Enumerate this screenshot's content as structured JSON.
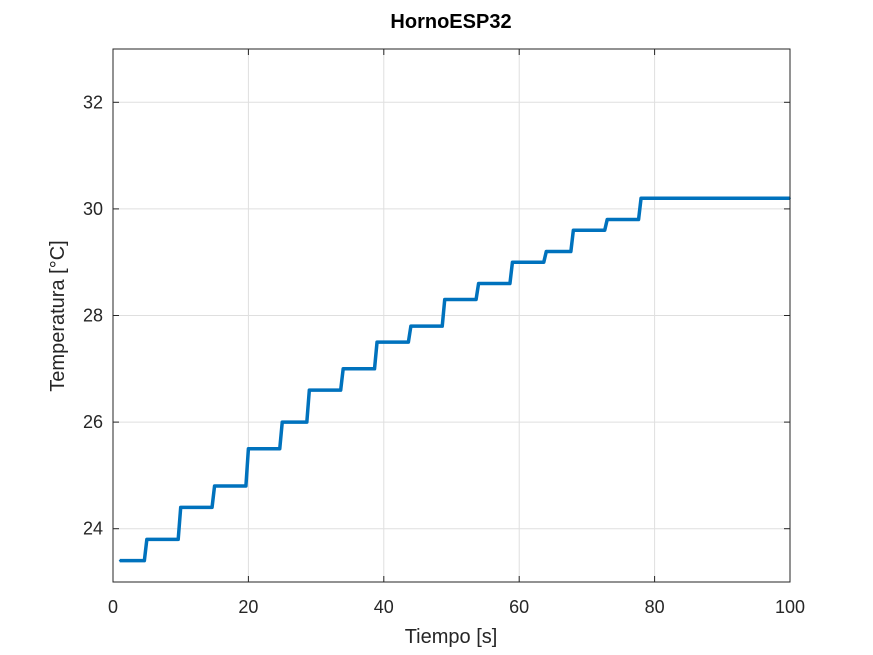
{
  "chart_data": {
    "type": "line",
    "title": "HornoESP32",
    "xlabel": "Tiempo [s]",
    "ylabel": "Temperatura [°C]",
    "xlim": [
      0,
      100
    ],
    "ylim": [
      23,
      33
    ],
    "xticks": [
      0,
      20,
      40,
      60,
      80,
      100
    ],
    "xtick_labels": [
      "0",
      "20",
      "40",
      "60",
      "80",
      "100"
    ],
    "yticks": [
      24,
      26,
      28,
      30,
      32
    ],
    "ytick_labels": [
      "24",
      "26",
      "28",
      "30",
      "32"
    ],
    "grid": true,
    "line_color": "#0072BD",
    "series": [
      {
        "step": "post",
        "x": [
          1,
          5,
          10,
          15,
          20,
          25,
          29,
          34,
          39,
          44,
          49,
          54,
          59,
          64,
          68,
          73,
          78,
          100
        ],
        "y": [
          23.4,
          23.8,
          24.4,
          24.8,
          25.5,
          26.0,
          26.6,
          27.0,
          27.5,
          27.8,
          28.3,
          28.6,
          29.0,
          29.2,
          29.6,
          29.8,
          30.2,
          30.2
        ]
      }
    ]
  }
}
